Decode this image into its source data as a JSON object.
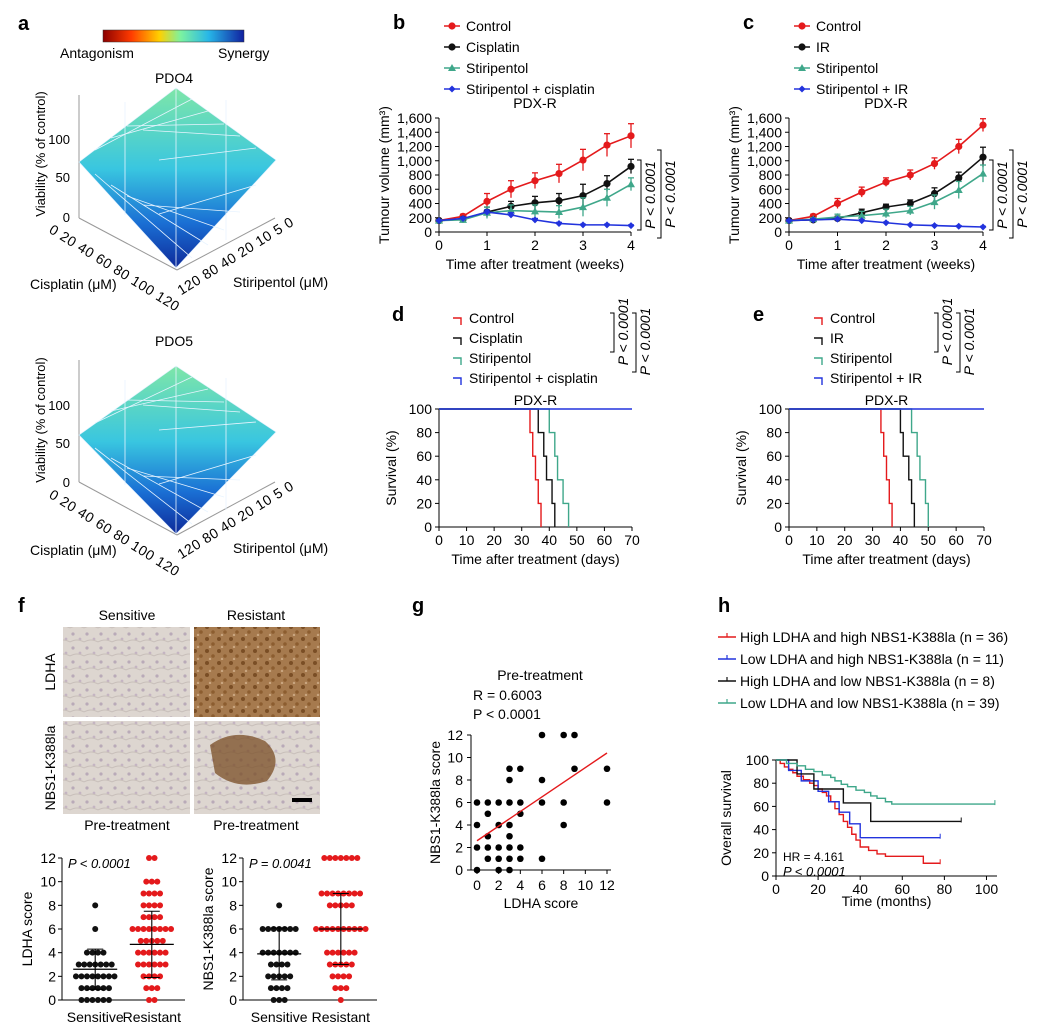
{
  "colors": {
    "control": "#e41a1c",
    "cisplatin": "#111111",
    "stiripentol": "#3fa78a",
    "combo": "#2233dd",
    "brown": "#8a5a2b",
    "tissue": "#d9d2cc"
  },
  "panel_a": {
    "letter": "a",
    "colorbar_left": "Antagonism",
    "colorbar_right": "Synergy",
    "plots": [
      {
        "title": "PDO4"
      },
      {
        "title": "PDO5"
      }
    ],
    "z_label": "Viability (% of control)",
    "z_ticks": [
      "0",
      "50",
      "100"
    ],
    "x_label": "Cisplatin (μM)",
    "x_ticks": [
      "0",
      "20",
      "40",
      "60",
      "80",
      "100",
      "120"
    ],
    "y_label": "Stiripentol (μM)",
    "y_ticks": [
      "0",
      "5",
      "10",
      "20",
      "40",
      "80",
      "120"
    ]
  },
  "panel_f": {
    "letter": "f",
    "col_headers": [
      "Sensitive",
      "Resistant"
    ],
    "row_labels": [
      "LDHA",
      "NBS1-K388la"
    ],
    "footers": [
      "Pre-treatment",
      "Pre-treatment"
    ]
  },
  "chart_data": [
    {
      "id": "b",
      "type": "line",
      "letter": "b",
      "title": "PDX-R",
      "xlabel": "Time after treatment (weeks)",
      "ylabel": "Tumour volume (mm³)",
      "xlim": [
        0,
        4
      ],
      "ylim": [
        0,
        1600
      ],
      "xticks": [
        "0",
        "1",
        "2",
        "3",
        "4"
      ],
      "yticks": [
        "0",
        "200",
        "400",
        "600",
        "800",
        "1,000",
        "1,200",
        "1,400",
        "1,600"
      ],
      "x": [
        0,
        0.5,
        1,
        1.5,
        2,
        2.5,
        3,
        3.5,
        4
      ],
      "series": [
        {
          "name": "Control",
          "color": "control",
          "marker": "circle",
          "values": [
            160,
            220,
            430,
            600,
            720,
            820,
            1010,
            1220,
            1350
          ],
          "err": [
            20,
            30,
            110,
            120,
            110,
            130,
            150,
            160,
            170
          ]
        },
        {
          "name": "Cisplatin",
          "color": "cisplatin",
          "marker": "circle",
          "values": [
            160,
            180,
            280,
            360,
            410,
            440,
            510,
            680,
            920
          ],
          "err": [
            15,
            30,
            70,
            70,
            90,
            100,
            160,
            110,
            100
          ]
        },
        {
          "name": "Stiripentol",
          "color": "stiripentol",
          "marker": "triangle",
          "values": [
            160,
            170,
            270,
            300,
            290,
            280,
            350,
            480,
            670
          ],
          "err": [
            15,
            40,
            80,
            80,
            90,
            90,
            130,
            120,
            90
          ]
        },
        {
          "name": "Stiripentol + cisplatin",
          "color": "combo",
          "marker": "diamond",
          "values": [
            160,
            190,
            280,
            240,
            170,
            120,
            100,
            100,
            90
          ],
          "err": [
            10,
            20,
            30,
            30,
            20,
            15,
            10,
            10,
            10
          ]
        }
      ],
      "pvalues": [
        "P < 0.0001",
        "P < 0.0001"
      ]
    },
    {
      "id": "c",
      "type": "line",
      "letter": "c",
      "title": "PDX-R",
      "xlabel": "Time after treatment (weeks)",
      "ylabel": "Tumour volume (mm³)",
      "xlim": [
        0,
        4
      ],
      "ylim": [
        0,
        1600
      ],
      "xticks": [
        "0",
        "1",
        "2",
        "3",
        "4"
      ],
      "yticks": [
        "0",
        "200",
        "400",
        "600",
        "800",
        "1,000",
        "1,200",
        "1,400",
        "1,600"
      ],
      "x": [
        0,
        0.5,
        1,
        1.5,
        2,
        2.5,
        3,
        3.5,
        4
      ],
      "series": [
        {
          "name": "Control",
          "color": "control",
          "marker": "circle",
          "values": [
            160,
            220,
            400,
            560,
            700,
            800,
            960,
            1200,
            1500
          ],
          "err": [
            15,
            30,
            70,
            70,
            60,
            70,
            80,
            100,
            90
          ]
        },
        {
          "name": "IR",
          "color": "cisplatin",
          "marker": "circle",
          "values": [
            160,
            170,
            190,
            270,
            350,
            400,
            540,
            760,
            1050
          ],
          "err": [
            10,
            20,
            30,
            50,
            40,
            50,
            80,
            80,
            140
          ]
        },
        {
          "name": "Stiripentol",
          "color": "stiripentol",
          "marker": "triangle",
          "values": [
            160,
            180,
            210,
            230,
            260,
            300,
            420,
            590,
            820
          ],
          "err": [
            10,
            20,
            40,
            60,
            60,
            60,
            100,
            120,
            120
          ]
        },
        {
          "name": "Stiripentol + IR",
          "color": "combo",
          "marker": "diamond",
          "values": [
            160,
            170,
            180,
            160,
            130,
            100,
            90,
            80,
            70
          ],
          "err": [
            10,
            15,
            15,
            15,
            10,
            10,
            10,
            10,
            10
          ]
        }
      ],
      "pvalues": [
        "P < 0.0001",
        "P < 0.0001"
      ]
    },
    {
      "id": "d",
      "type": "line",
      "letter": "d",
      "title": "PDX-R",
      "xlabel": "Time after treatment (days)",
      "ylabel": "Survival (%)",
      "xlim": [
        0,
        70
      ],
      "ylim": [
        0,
        100
      ],
      "xticks": [
        "0",
        "10",
        "20",
        "30",
        "40",
        "50",
        "60",
        "70"
      ],
      "yticks": [
        "0",
        "20",
        "40",
        "60",
        "80",
        "100"
      ],
      "series": [
        {
          "name": "Control",
          "color": "control",
          "events": [
            33,
            34,
            35,
            36,
            37
          ]
        },
        {
          "name": "Cisplatin",
          "color": "cisplatin",
          "events": [
            36,
            38,
            39,
            41,
            42
          ]
        },
        {
          "name": "Stiripentol",
          "color": "stiripentol",
          "events": [
            40,
            42,
            43,
            45,
            47
          ]
        },
        {
          "name": "Stiripentol + cisplatin",
          "color": "combo",
          "events": []
        }
      ],
      "pvalues": [
        "P < 0.0001",
        "P < 0.0001"
      ]
    },
    {
      "id": "e",
      "type": "line",
      "letter": "e",
      "title": "PDX-R",
      "xlabel": "Time after treatment (days)",
      "ylabel": "Survival (%)",
      "xlim": [
        0,
        70
      ],
      "ylim": [
        0,
        100
      ],
      "xticks": [
        "0",
        "10",
        "20",
        "30",
        "40",
        "50",
        "60",
        "70"
      ],
      "yticks": [
        "0",
        "20",
        "40",
        "60",
        "80",
        "100"
      ],
      "series": [
        {
          "name": "Control",
          "color": "control",
          "events": [
            33,
            34,
            35,
            36,
            37
          ]
        },
        {
          "name": "IR",
          "color": "cisplatin",
          "events": [
            40,
            41,
            43,
            44,
            45
          ]
        },
        {
          "name": "Stiripentol",
          "color": "stiripentol",
          "events": [
            44,
            46,
            47,
            49,
            50
          ]
        },
        {
          "name": "Stiripentol + IR",
          "color": "combo",
          "events": []
        }
      ],
      "pvalues": [
        "P < 0.0001",
        "P < 0.0001"
      ]
    },
    {
      "id": "f1",
      "type": "scatter",
      "ylabel": "LDHA score",
      "ylim": [
        0,
        12
      ],
      "yticks": [
        "0",
        "2",
        "4",
        "6",
        "8",
        "10",
        "12"
      ],
      "categories": [
        "Sensitive",
        "Resistant"
      ],
      "pvalue": "P < 0.0001",
      "groups": [
        {
          "name": "Sensitive",
          "color": "cisplatin",
          "mean": 2.6,
          "sd": 1.7,
          "counts": {
            "0": 6,
            "1": 6,
            "2": 8,
            "3": 7,
            "4": 4,
            "6": 1,
            "8": 1
          }
        },
        {
          "name": "Resistant",
          "color": "control",
          "mean": 4.7,
          "sd": 2.8,
          "counts": {
            "0": 2,
            "1": 3,
            "2": 4,
            "3": 6,
            "4": 6,
            "5": 5,
            "6": 8,
            "7": 4,
            "8": 4,
            "9": 4,
            "10": 3,
            "12": 2
          }
        }
      ]
    },
    {
      "id": "f2",
      "type": "scatter",
      "ylabel": "NBS1-K388la score",
      "ylim": [
        0,
        12
      ],
      "yticks": [
        "0",
        "2",
        "4",
        "6",
        "8",
        "10",
        "12"
      ],
      "categories": [
        "Sensitive",
        "Resistant"
      ],
      "pvalue": "P = 0.0041",
      "groups": [
        {
          "name": "Sensitive",
          "color": "cisplatin",
          "mean": 3.9,
          "sd": 2.2,
          "counts": {
            "0": 3,
            "1": 4,
            "2": 5,
            "3": 4,
            "4": 7,
            "6": 7,
            "8": 1
          }
        },
        {
          "name": "Resistant",
          "color": "control",
          "mean": 6.0,
          "sd": 3.0,
          "counts": {
            "0": 1,
            "1": 3,
            "2": 4,
            "3": 5,
            "4": 6,
            "6": 10,
            "8": 5,
            "9": 8,
            "12": 7
          }
        }
      ]
    },
    {
      "id": "g",
      "type": "scatter",
      "letter": "g",
      "title": "Pre-treatment",
      "r_text": "R = 0.6003",
      "p_text": "P < 0.0001",
      "xlabel": "LDHA score",
      "ylabel": "NBS1-K388la score",
      "xlim": [
        0,
        12
      ],
      "ylim": [
        0,
        12
      ],
      "xticks": [
        "0",
        "2",
        "4",
        "6",
        "8",
        "10",
        "12"
      ],
      "yticks": [
        "0",
        "2",
        "4",
        "6",
        "8",
        "10",
        "12"
      ],
      "points": [
        [
          0,
          0
        ],
        [
          0,
          2
        ],
        [
          0,
          4
        ],
        [
          0,
          6
        ],
        [
          1,
          1
        ],
        [
          1,
          2
        ],
        [
          1,
          3
        ],
        [
          1,
          5
        ],
        [
          1,
          6
        ],
        [
          2,
          0
        ],
        [
          2,
          1
        ],
        [
          2,
          2
        ],
        [
          2,
          4
        ],
        [
          2,
          6
        ],
        [
          3,
          0
        ],
        [
          3,
          1
        ],
        [
          3,
          2
        ],
        [
          3,
          3
        ],
        [
          3,
          4
        ],
        [
          3,
          6
        ],
        [
          3,
          8
        ],
        [
          3,
          9
        ],
        [
          4,
          1
        ],
        [
          4,
          2
        ],
        [
          4,
          5
        ],
        [
          4,
          6
        ],
        [
          4,
          9
        ],
        [
          6,
          1
        ],
        [
          6,
          6
        ],
        [
          6,
          8
        ],
        [
          6,
          12
        ],
        [
          8,
          4
        ],
        [
          8,
          6
        ],
        [
          8,
          12
        ],
        [
          9,
          9
        ],
        [
          9,
          12
        ],
        [
          12,
          6
        ],
        [
          12,
          9
        ]
      ],
      "fit": [
        [
          0,
          2.6
        ],
        [
          12,
          10.4
        ]
      ]
    },
    {
      "id": "h",
      "type": "line",
      "letter": "h",
      "xlabel": "Time (months)",
      "ylabel": "Overall survival",
      "xlim": [
        0,
        105
      ],
      "ylim": [
        0,
        100
      ],
      "xticks": [
        "0",
        "20",
        "40",
        "60",
        "80",
        "100"
      ],
      "yticks": [
        "0",
        "20",
        "40",
        "60",
        "80",
        "100"
      ],
      "hr_text": "HR = 4.161",
      "p_text": "P < 0.0001",
      "series": [
        {
          "name": "High LDHA and high NBS1-K388la (n = 36)",
          "color": "control",
          "steps": [
            [
              0,
              100
            ],
            [
              2,
              97
            ],
            [
              4,
              94
            ],
            [
              6,
              92
            ],
            [
              8,
              89
            ],
            [
              10,
              86
            ],
            [
              13,
              83
            ],
            [
              16,
              80
            ],
            [
              18,
              78
            ],
            [
              20,
              75
            ],
            [
              22,
              72
            ],
            [
              24,
              69
            ],
            [
              26,
              64
            ],
            [
              28,
              58
            ],
            [
              30,
              53
            ],
            [
              32,
              47
            ],
            [
              34,
              42
            ],
            [
              36,
              36
            ],
            [
              38,
              31
            ],
            [
              40,
              25
            ],
            [
              44,
              22
            ],
            [
              48,
              19
            ],
            [
              52,
              17
            ],
            [
              68,
              17
            ],
            [
              70,
              11
            ],
            [
              78,
              11
            ]
          ]
        },
        {
          "name": "Low LDHA and high NBS1-K388la (n = 11)",
          "color": "combo",
          "steps": [
            [
              0,
              100
            ],
            [
              6,
              91
            ],
            [
              12,
              82
            ],
            [
              20,
              73
            ],
            [
              25,
              64
            ],
            [
              30,
              55
            ],
            [
              35,
              45
            ],
            [
              40,
              33
            ],
            [
              78,
              33
            ]
          ]
        },
        {
          "name": "High LDHA and low NBS1-K388la (n = 8)",
          "color": "cisplatin",
          "steps": [
            [
              0,
              100
            ],
            [
              10,
              88
            ],
            [
              18,
              75
            ],
            [
              32,
              63
            ],
            [
              45,
              47
            ],
            [
              88,
              47
            ]
          ]
        },
        {
          "name": "Low LDHA and low NBS1-K388la (n = 39)",
          "color": "stiripentol",
          "steps": [
            [
              0,
              100
            ],
            [
              5,
              97
            ],
            [
              10,
              95
            ],
            [
              14,
              92
            ],
            [
              18,
              90
            ],
            [
              22,
              87
            ],
            [
              26,
              85
            ],
            [
              28,
              82
            ],
            [
              31,
              79
            ],
            [
              34,
              77
            ],
            [
              38,
              74
            ],
            [
              42,
              72
            ],
            [
              45,
              69
            ],
            [
              48,
              67
            ],
            [
              52,
              64
            ],
            [
              55,
              62
            ],
            [
              104,
              62
            ]
          ]
        }
      ]
    }
  ]
}
